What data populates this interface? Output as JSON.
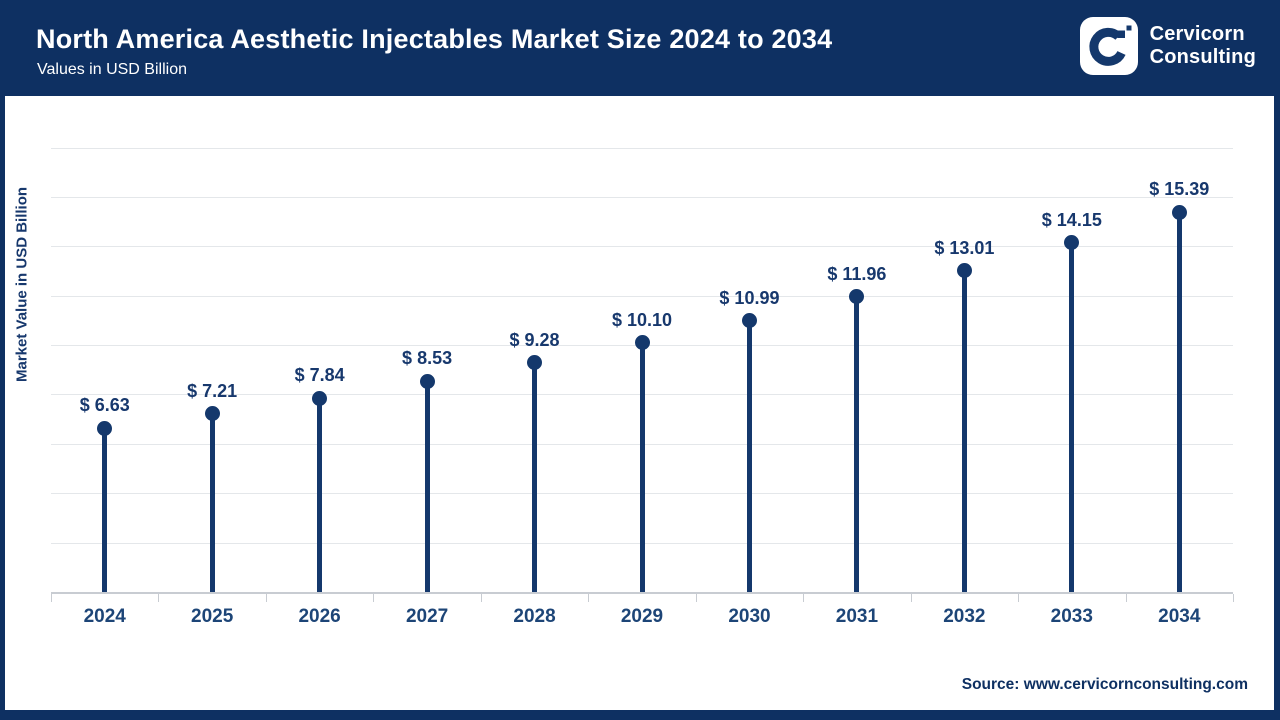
{
  "header": {
    "title": "North America Aesthetic Injectables Market Size 2024 to 2034",
    "subtitle": "Values in USD Billion"
  },
  "logo": {
    "company_line1": "Cervicorn",
    "company_line2": "Consulting"
  },
  "chart_data": {
    "type": "lollipop",
    "title": "North America Aesthetic Injectables Market Size 2024 to 2034",
    "categories": [
      "2024",
      "2025",
      "2026",
      "2027",
      "2028",
      "2029",
      "2030",
      "2031",
      "2032",
      "2033",
      "2034"
    ],
    "values": [
      6.63,
      7.21,
      7.84,
      8.53,
      9.28,
      10.1,
      10.99,
      11.96,
      13.01,
      14.15,
      15.39
    ],
    "value_labels": [
      "$ 6.63",
      "$ 7.21",
      "$ 7.84",
      "$ 8.53",
      "$ 9.28",
      "$ 10.10",
      "$ 10.99",
      "$ 11.96",
      "$ 13.01",
      "$ 14.15",
      "$ 15.39"
    ],
    "xlabel": "",
    "ylabel": "Market Value in USD Billion",
    "ylim": [
      0,
      19
    ],
    "grid_step": 2,
    "grid": "horizontal",
    "legend": "none"
  },
  "source": {
    "text": "Source: www.cervicornconsulting.com"
  },
  "colors": {
    "navy": "#0E3062",
    "stem": "#14386C",
    "value_label": "#17386D",
    "year_label": "#1D4577",
    "gridline": "#E4E7EA",
    "axis_line": "#C8CCD2",
    "title_text": "#FFFFFF",
    "background": "#FFFFFF"
  }
}
